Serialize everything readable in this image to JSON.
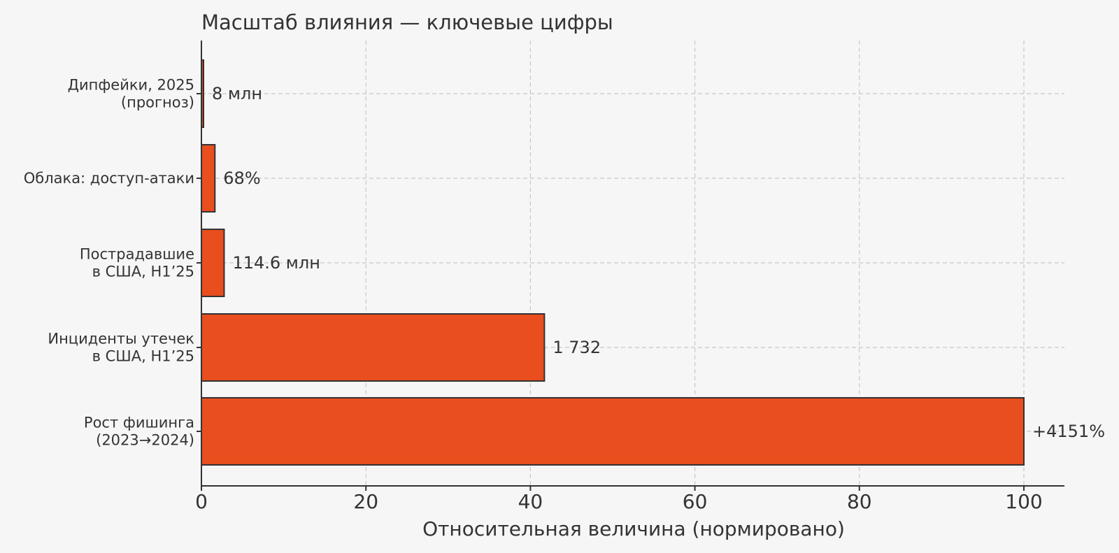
{
  "chart_data": {
    "type": "bar",
    "orientation": "horizontal",
    "title": "Масштаб влияния — ключевые цифры",
    "xlabel": "Относительная величина (нормировано)",
    "ylabel": "",
    "xlim": [
      0,
      105
    ],
    "xticks": [
      0,
      20,
      40,
      60,
      80,
      100
    ],
    "grid": true,
    "bar_color": "#e84e1e",
    "edge_color": "#333333",
    "categories": [
      [
        "Дипфейки, 2025",
        "(прогноз)"
      ],
      [
        "Облака: доступ-атаки"
      ],
      [
        "Пострадавшие",
        "в США, H1’25"
      ],
      [
        "Инциденты утечек",
        "в США, H1’25"
      ],
      [
        "Рост фишинга",
        "(2023→2024)"
      ]
    ],
    "values": [
      0.19,
      1.64,
      2.76,
      41.7,
      100
    ],
    "data_labels": [
      "8 млн",
      "68%",
      "114.6 млн",
      "1 732",
      "+4151%"
    ]
  }
}
